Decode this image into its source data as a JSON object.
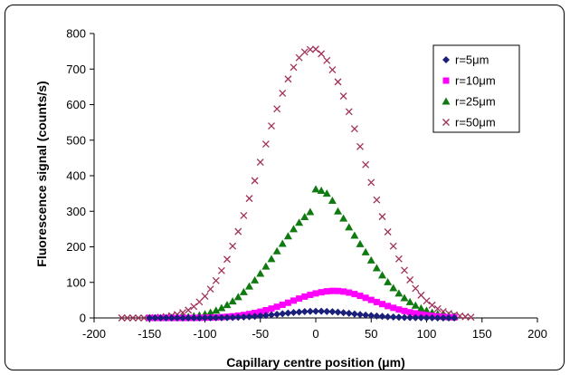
{
  "chart_data": {
    "type": "scatter",
    "xlabel": "Capillary centre position (μm)",
    "ylabel": "Fluorescence signal (counts/s)",
    "xlim": [
      -200,
      200
    ],
    "ylim": [
      0,
      800
    ],
    "xticks": [
      -200,
      -150,
      -100,
      -50,
      0,
      50,
      100,
      150,
      200
    ],
    "yticks": [
      0,
      100,
      200,
      300,
      400,
      500,
      600,
      700,
      800
    ],
    "grid": false,
    "legend_position": "top-right",
    "series": [
      {
        "name": "r=5μm",
        "marker": "diamond",
        "color": "#1a1f7a",
        "x": [
          -150,
          -145,
          -140,
          -135,
          -130,
          -125,
          -120,
          -115,
          -110,
          -105,
          -100,
          -95,
          -90,
          -85,
          -80,
          -75,
          -70,
          -65,
          -60,
          -55,
          -50,
          -45,
          -40,
          -35,
          -30,
          -25,
          -20,
          -15,
          -10,
          -5,
          0,
          5,
          10,
          15,
          20,
          25,
          30,
          35,
          40,
          45,
          50,
          55,
          60,
          65,
          70,
          75,
          80,
          85,
          90,
          95,
          100,
          105,
          110,
          115,
          120,
          125
        ],
        "y": [
          0,
          0,
          0,
          0,
          0,
          0,
          0,
          0,
          0,
          0,
          0.2,
          0.3,
          0.5,
          0.7,
          1,
          1.4,
          1.9,
          2.6,
          3.4,
          4.4,
          5.6,
          7,
          8.5,
          10.2,
          11.9,
          13.6,
          15.2,
          16.6,
          17.8,
          18.5,
          18.8,
          18.8,
          18.3,
          17.4,
          16.1,
          14.6,
          13,
          11.3,
          9.7,
          8.1,
          6.7,
          5.4,
          4.3,
          3.3,
          2.5,
          1.9,
          1.4,
          1,
          0.7,
          0.5,
          0.3,
          0.2,
          0.1,
          0,
          0,
          0
        ]
      },
      {
        "name": "r=10μm",
        "marker": "square",
        "color": "#ff00ff",
        "x": [
          -150,
          -145,
          -140,
          -135,
          -130,
          -125,
          -120,
          -115,
          -110,
          -105,
          -100,
          -95,
          -90,
          -85,
          -80,
          -75,
          -70,
          -65,
          -60,
          -55,
          -50,
          -45,
          -40,
          -35,
          -30,
          -25,
          -20,
          -15,
          -10,
          -5,
          0,
          5,
          10,
          15,
          20,
          25,
          30,
          35,
          40,
          45,
          50,
          55,
          60,
          65,
          70,
          75,
          80,
          85,
          90,
          95,
          100,
          105,
          110,
          115,
          120,
          125
        ],
        "y": [
          0,
          0,
          0,
          0,
          0,
          0,
          0,
          0,
          0.2,
          0.4,
          0.7,
          1.1,
          1.6,
          2.3,
          3.3,
          4.6,
          6.3,
          8.4,
          11,
          14,
          17.6,
          21.7,
          26.3,
          31.4,
          37,
          42.8,
          48.7,
          54.5,
          60,
          64.9,
          69,
          72.2,
          74.8,
          76,
          75.8,
          74.2,
          71.3,
          67.2,
          62.2,
          56.6,
          50.7,
          44.8,
          39,
          33.5,
          28.4,
          23.7,
          19.6,
          15.9,
          12.8,
          10.1,
          7.8,
          5.9,
          4.4,
          3.2,
          2.2,
          1.5
        ]
      },
      {
        "name": "r=25μm",
        "marker": "triangle",
        "color": "#0f7a0f",
        "x": [
          -150,
          -145,
          -140,
          -135,
          -130,
          -125,
          -120,
          -115,
          -110,
          -105,
          -100,
          -95,
          -90,
          -85,
          -80,
          -75,
          -70,
          -65,
          -60,
          -55,
          -50,
          -45,
          -40,
          -35,
          -30,
          -25,
          -20,
          -15,
          -10,
          -5,
          0,
          5,
          10,
          15,
          20,
          25,
          30,
          35,
          40,
          45,
          50,
          55,
          60,
          65,
          70,
          75,
          80,
          85,
          90,
          95,
          100,
          105,
          110,
          115,
          120,
          125
        ],
        "y": [
          0,
          0,
          0.1,
          0.3,
          0.6,
          1.2,
          2,
          3.3,
          5.1,
          7.6,
          10.9,
          15.3,
          20.9,
          27.9,
          36.5,
          46.8,
          58.9,
          72.9,
          88.7,
          106,
          125,
          145,
          166,
          188,
          209,
          230,
          250,
          268,
          284,
          298,
          362,
          358,
          350,
          330,
          300,
          280,
          255,
          232,
          208,
          185,
          162,
          140,
          120,
          101,
          84,
          69,
          56,
          45,
          35,
          27,
          20.6,
          15.4,
          11.3,
          8.1,
          5.7,
          3.9
        ]
      },
      {
        "name": "r=50μm",
        "marker": "cross",
        "color": "#a0305a",
        "x": [
          -175,
          -170,
          -165,
          -160,
          -155,
          -150,
          -145,
          -140,
          -135,
          -130,
          -125,
          -120,
          -115,
          -110,
          -105,
          -100,
          -95,
          -90,
          -85,
          -80,
          -75,
          -70,
          -65,
          -60,
          -55,
          -50,
          -45,
          -40,
          -35,
          -30,
          -25,
          -20,
          -15,
          -10,
          -5,
          0,
          5,
          10,
          15,
          20,
          25,
          30,
          35,
          40,
          45,
          50,
          55,
          60,
          65,
          70,
          75,
          80,
          85,
          90,
          95,
          100,
          105,
          110,
          115,
          120,
          125,
          130,
          135,
          140
        ],
        "y": [
          0,
          0,
          0,
          0,
          0,
          0.5,
          1,
          2,
          3.5,
          6,
          9.5,
          15,
          22,
          32,
          45,
          61,
          81,
          105,
          133,
          165,
          202,
          243,
          288,
          336,
          386,
          438,
          489,
          540,
          588,
          632,
          672,
          705,
          732,
          748,
          755,
          756,
          743,
          724,
          698,
          664,
          624,
          580,
          532,
          482,
          431,
          381,
          332,
          285,
          242,
          202,
          166,
          134,
          107,
          83,
          64,
          48,
          36,
          26,
          18,
          12.5,
          8.5,
          5.5,
          3.5,
          2
        ]
      }
    ]
  }
}
